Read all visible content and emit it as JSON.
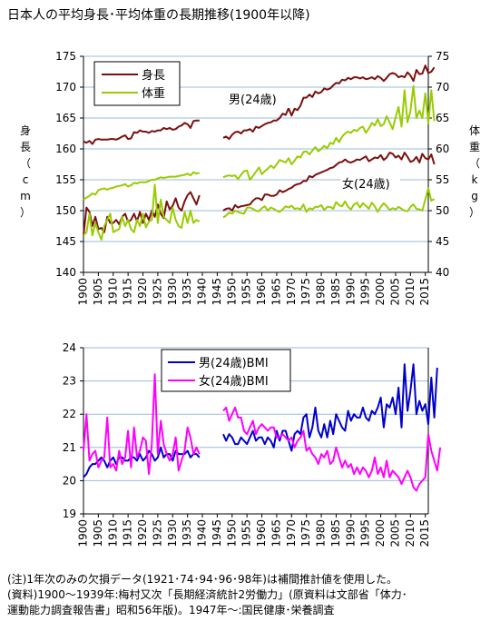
{
  "title": "日本人の平均身長･平均体重の長期推移(1900年以降)",
  "notes": [
    "(注)1年次のみの欠損データ(1921･74･94･96･98年)は補間推計値を使用した。",
    "(資料)1900～1939年:梅村又次「長期経済統計2労働力」(原資料は文部省「体力･",
    "運動能力調査報告書」昭和56年版)。1947年～:国民健康･栄養調査"
  ],
  "chart_data": [
    {
      "type": "line",
      "left_axis_label": "身長（cm）",
      "right_axis_label": "体重（kg）",
      "ylim_left": [
        140,
        175
      ],
      "ylim_right": [
        40,
        75
      ],
      "left_ticks": [
        "140",
        "145",
        "150",
        "155",
        "160",
        "165",
        "170",
        "175"
      ],
      "right_ticks": [
        "40",
        "45",
        "50",
        "55",
        "60",
        "65",
        "70",
        "75"
      ],
      "x_ticks": [
        "1900",
        "1905",
        "1910",
        "1915",
        "1920",
        "1925",
        "1930",
        "1935",
        "1940",
        "1945",
        "1950",
        "1955",
        "1960",
        "1965",
        "1970",
        "1975",
        "1980",
        "1985",
        "1990",
        "1995",
        "2000",
        "2005",
        "2010",
        "2015"
      ],
      "legend": [
        "身長",
        "体重"
      ],
      "annotations": {
        "male": "男(24歳)",
        "female": "女(24歳)"
      },
      "colors": {
        "height": "#7b1010",
        "weight": "#99cc00",
        "grid": "#99bbdd"
      },
      "grid": true,
      "series": [
        {
          "name": "身長",
          "group": "男(24歳)",
          "axis": "left",
          "segments": [
            {
              "start": 1900,
              "values": [
                161.2,
                161.0,
                161.3,
                160.8,
                161.5,
                161.6,
                161.5,
                161.5,
                161.5,
                161.6,
                161.6,
                161.5,
                161.7,
                162.0,
                162.2,
                161.6,
                161.7,
                162.7,
                162.6,
                163.0,
                162.8,
                162.8,
                162.6,
                162.9,
                162.8,
                163.0,
                163.0,
                163.4,
                163.2,
                163.4,
                163.1,
                163.2,
                163.6,
                163.8,
                164.2,
                164.0,
                163.4,
                164.5,
                164.6,
                164.6
              ]
            },
            {
              "start": 1947,
              "values": [
                161.8,
                162.0,
                161.6,
                162.3,
                162.7,
                162.8,
                162.5,
                163.0,
                163.0,
                163.2,
                162.8,
                163.6,
                163.4,
                163.7,
                164.0,
                164.2,
                164.3,
                164.6,
                164.6,
                165.0,
                165.7,
                165.5,
                166.6,
                165.4,
                166.5,
                166.3,
                167.0,
                168.3,
                168.3,
                168.8,
                168.4,
                169.3,
                169.0,
                169.2,
                169.8,
                169.6,
                169.8,
                170.3,
                170.7,
                170.6,
                171.2,
                171.1,
                171.5,
                171.3,
                171.6,
                171.6,
                171.4,
                171.6,
                171.3,
                171.4,
                171.6,
                171.3,
                171.8,
                171.5,
                171.0,
                171.5,
                172.1,
                172.3,
                172.1,
                171.6,
                171.8,
                171.6,
                172.4,
                171.9,
                171.0,
                172.8,
                172.1,
                172.2,
                173.5,
                172.3,
                172.5,
                173.2
              ]
            }
          ]
        },
        {
          "name": "身長",
          "group": "女(24歳)",
          "axis": "left",
          "segments": [
            {
              "start": 1900,
              "values": [
                146.0,
                150.5,
                149.8,
                147.5,
                149.0,
                147.0,
                147.2,
                146.5,
                149.0,
                148.0,
                148.0,
                148.5,
                147.8,
                149.0,
                149.5,
                148.2,
                148.5,
                149.5,
                148.3,
                149.8,
                148.0,
                149.5,
                148.5,
                150.0,
                149.0,
                151.0,
                149.5,
                148.8,
                151.5,
                150.2,
                150.8,
                152.0,
                150.5,
                150.0,
                151.5,
                152.5,
                153.0,
                152.0,
                151.0,
                152.5
              ]
            },
            {
              "start": 1947,
              "values": [
                150.0,
                150.3,
                150.4,
                150.0,
                150.9,
                150.5,
                150.7,
                150.8,
                150.9,
                151.0,
                151.6,
                152.0,
                152.0,
                151.7,
                152.6,
                152.6,
                152.4,
                152.4,
                152.6,
                153.3,
                153.0,
                153.2,
                153.5,
                153.7,
                154.1,
                154.3,
                154.4,
                154.8,
                154.8,
                155.6,
                155.4,
                155.8,
                156.0,
                156.2,
                156.4,
                156.6,
                156.9,
                157.0,
                157.4,
                157.8,
                157.9,
                158.3,
                157.9,
                157.8,
                158.0,
                158.3,
                158.2,
                158.5,
                158.8,
                158.0,
                158.3,
                158.6,
                158.5,
                159.0,
                158.2,
                158.6,
                159.4,
                159.2,
                158.6,
                158.9,
                158.3,
                159.4,
                158.7,
                157.9,
                158.1,
                158.7,
                157.8,
                159.2,
                158.5,
                158.3,
                159.1,
                157.5
              ]
            }
          ]
        },
        {
          "name": "体重",
          "group": "男(24歳)",
          "axis": "right",
          "segments": [
            {
              "start": 1900,
              "values": [
                51.8,
                52.1,
                52.4,
                52.8,
                52.6,
                53.3,
                53.5,
                53.6,
                53.4,
                53.6,
                53.7,
                53.9,
                54.0,
                54.1,
                54.3,
                53.9,
                54.1,
                54.5,
                54.4,
                54.6,
                54.6,
                54.6,
                54.8,
                55.0,
                55.0,
                55.2,
                55.4,
                55.3,
                55.4,
                55.5,
                55.5,
                55.5,
                55.6,
                55.7,
                55.8,
                56.0,
                55.7,
                56.2,
                56.0,
                56.1
              ]
            },
            {
              "start": 1947,
              "values": [
                55.4,
                55.6,
                55.7,
                55.6,
                55.7,
                55.1,
                55.8,
                56.4,
                56.5,
                55.0,
                55.6,
                56.3,
                57.0,
                55.9,
                56.4,
                56.8,
                57.3,
                56.9,
                57.5,
                58.2,
                58.0,
                57.8,
                58.5,
                57.5,
                58.1,
                58.8,
                58.6,
                59.5,
                59.6,
                59.1,
                59.7,
                60.3,
                59.6,
                60.0,
                60.5,
                60.1,
                61.0,
                60.8,
                61.8,
                61.1,
                62.0,
                62.5,
                62.8,
                62.6,
                63.1,
                62.9,
                63.4,
                63.6,
                62.6,
                63.3,
                64.2,
                63.8,
                64.8,
                63.7,
                64.0,
                65.3,
                64.3,
                63.2,
                65.1,
                66.8,
                63.6,
                69.5,
                64.3,
                66.1,
                70.2,
                65.0,
                66.2,
                65.0,
                69.0,
                64.2,
                69.5,
                64.5
              ]
            }
          ]
        },
        {
          "name": "体重",
          "group": "女(24歳)",
          "axis": "right",
          "segments": [
            {
              "start": 1900,
              "values": [
                46.0,
                46.5,
                49.5,
                46.0,
                48.0,
                46.5,
                45.3,
                47.5,
                48.5,
                49.5,
                46.5,
                46.8,
                47.0,
                49.0,
                47.5,
                48.5,
                47.0,
                46.5,
                48.5,
                47.5,
                49.5,
                47.3,
                48.2,
                48.5,
                54.2,
                48.0,
                51.8,
                49.0,
                48.5,
                48.0,
                50.5,
                48.5,
                47.5,
                47.2,
                49.8,
                48.0,
                50.0,
                48.0,
                48.5,
                48.2
              ]
            },
            {
              "start": 1947,
              "values": [
                48.9,
                49.2,
                49.7,
                49.5,
                50.0,
                49.8,
                49.6,
                49.5,
                50.5,
                50.5,
                50.3,
                50.0,
                49.9,
                50.4,
                50.7,
                50.0,
                50.5,
                50.3,
                50.0,
                49.8,
                50.2,
                50.7,
                50.5,
                50.8,
                50.3,
                50.4,
                50.2,
                51.0,
                49.8,
                50.4,
                50.2,
                50.6,
                50.6,
                50.9,
                50.1,
                50.6,
                50.6,
                50.3,
                51.4,
                50.9,
                50.7,
                51.5,
                50.6,
                50.2,
                51.0,
                51.3,
                50.5,
                51.2,
                50.8,
                50.3,
                51.3,
                50.7,
                49.8,
                50.6,
                51.2,
                50.7,
                50.1,
                50.4,
                50.2,
                50.6,
                50.3,
                50.0,
                49.9,
                50.6,
                51.0,
                50.3,
                50.2,
                50.0,
                51.8,
                53.6,
                51.6,
                51.9
              ]
            }
          ]
        }
      ]
    },
    {
      "type": "line",
      "ylim": [
        19,
        24
      ],
      "y_ticks": [
        "19",
        "20",
        "21",
        "22",
        "23",
        "24"
      ],
      "x_ticks": [
        "1900",
        "1905",
        "1910",
        "1915",
        "1920",
        "1925",
        "1930",
        "1935",
        "1940",
        "1945",
        "1950",
        "1955",
        "1960",
        "1965",
        "1970",
        "1975",
        "1980",
        "1985",
        "1990",
        "1995",
        "2000",
        "2005",
        "2010",
        "2015"
      ],
      "legend": [
        "男(24歳)BMI",
        "女(24歳)BMI"
      ],
      "colors": {
        "male": "#0000cc",
        "female": "#ff00ff",
        "grid": "#99bbdd"
      },
      "grid": true,
      "series": [
        {
          "name": "男(24歳)BMI",
          "segments": [
            {
              "start": 1900,
              "values": [
                20.1,
                20.2,
                20.4,
                20.5,
                20.5,
                20.6,
                20.7,
                20.6,
                20.4,
                20.6,
                20.7,
                20.5,
                20.7,
                20.7,
                20.6,
                20.6,
                20.7,
                20.7,
                20.6,
                20.8,
                20.6,
                20.7,
                20.9,
                20.8,
                20.6,
                20.7,
                21.0,
                20.7,
                20.8,
                20.8,
                20.6,
                20.9,
                20.8,
                20.8,
                20.8,
                20.9,
                20.7,
                20.8,
                20.8,
                20.7
              ]
            },
            {
              "start": 1947,
              "values": [
                21.4,
                21.2,
                21.4,
                21.3,
                21.1,
                21.1,
                21.3,
                21.2,
                21.1,
                21.3,
                21.5,
                21.2,
                21.3,
                21.3,
                21.1,
                21.3,
                21.2,
                21.0,
                21.5,
                21.2,
                21.5,
                21.5,
                21.2,
                20.9,
                21.4,
                21.5,
                21.4,
                21.9,
                22.0,
                21.3,
                21.6,
                22.2,
                21.5,
                21.3,
                21.7,
                21.3,
                21.8,
                21.4,
                22.0,
                21.8,
                21.6,
                21.5,
                22.1,
                21.8,
                22.0,
                21.9,
                21.9,
                22.2,
                21.9,
                21.8,
                22.1,
                22.0,
                22.2,
                22.5,
                21.6,
                22.3,
                22.2,
                22.5,
                22.0,
                22.8,
                21.6,
                23.5,
                22.1,
                22.7,
                23.5,
                22.0,
                22.4,
                22.1,
                22.3,
                21.7,
                23.1,
                21.9,
                23.4
              ]
            }
          ]
        },
        {
          "name": "女(24歳)BMI",
          "segments": [
            {
              "start": 1900,
              "values": [
                20.9,
                22.0,
                20.6,
                20.8,
                20.9,
                20.4,
                20.6,
                20.7,
                21.9,
                20.4,
                20.5,
                20.3,
                20.9,
                20.5,
                20.7,
                21.5,
                20.4,
                21.6,
                20.7,
                20.9,
                21.3,
                21.2,
                20.2,
                21.1,
                23.2,
                20.8,
                21.8,
                21.1,
                20.8,
                20.6,
                20.8,
                21.3,
                20.3,
                20.6,
                20.9,
                21.6,
                21.3,
                20.8,
                21.0,
                20.8
              ]
            },
            {
              "start": 1947,
              "values": [
                22.1,
                22.2,
                21.8,
                22.0,
                22.2,
                21.9,
                21.9,
                21.5,
                21.4,
                21.6,
                21.8,
                21.4,
                21.6,
                21.7,
                21.6,
                21.5,
                21.6,
                21.6,
                21.3,
                21.3,
                21.4,
                21.3,
                21.2,
                21.3,
                21.0,
                21.2,
                21.3,
                21.5,
                20.9,
                21.0,
                20.8,
                20.7,
                20.5,
                20.8,
                20.7,
                20.9,
                20.5,
                20.6,
                21.0,
                20.7,
                20.4,
                20.6,
                20.4,
                20.5,
                20.2,
                20.4,
                20.2,
                20.4,
                20.3,
                20.1,
                20.3,
                20.7,
                20.2,
                20.4,
                20.1,
                20.6,
                20.1,
                20.3,
                20.2,
                20.1,
                19.9,
                20.1,
                20.3,
                20.1,
                19.8,
                19.7,
                19.9,
                20.0,
                20.1,
                21.4,
                20.9,
                20.6,
                20.3,
                21.0
              ]
            }
          ]
        }
      ]
    }
  ]
}
